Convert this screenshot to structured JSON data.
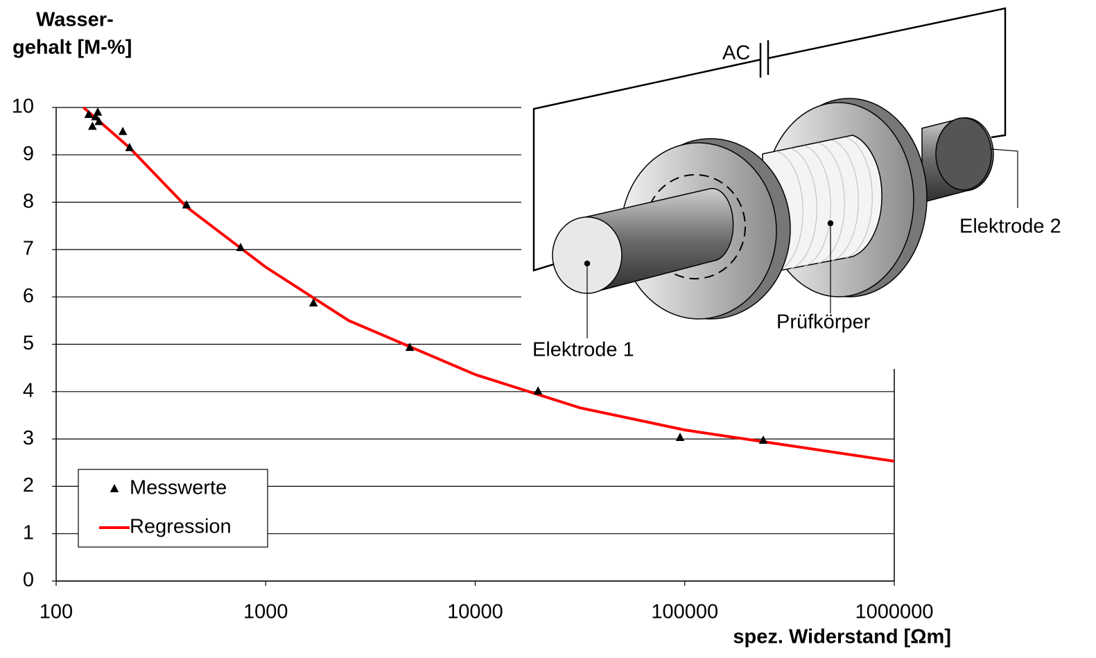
{
  "chart_data": {
    "type": "scatter",
    "ylabel_lines": [
      "Wasser-",
      "gehalt [M-%]"
    ],
    "xlabel": "spez. Widerstand [Ωm]",
    "xscale": "log",
    "xlim": [
      100,
      1000000
    ],
    "xticks": [
      100,
      1000,
      10000,
      100000,
      1000000
    ],
    "ylim": [
      0,
      10
    ],
    "yticks": [
      0,
      1,
      2,
      3,
      4,
      5,
      6,
      7,
      8,
      9,
      10
    ],
    "grid": true,
    "legend": "lower left",
    "series": [
      {
        "name": "Messwerte",
        "type": "scatter",
        "color": "#000000",
        "x": [
          143,
          149,
          154,
          158,
          160,
          208,
          224,
          419,
          759,
          1690,
          4870,
          19950,
          95000,
          237000
        ],
        "values": [
          9.85,
          9.6,
          9.8,
          9.9,
          9.7,
          9.49,
          9.15,
          7.94,
          7.04,
          5.87,
          4.93,
          4.01,
          3.03,
          2.97
        ]
      },
      {
        "name": "Regression",
        "type": "line",
        "color": "#ff0000",
        "x": [
          135,
          224,
          419,
          1000,
          2490,
          10000,
          31500,
          100000,
          1000000
        ],
        "values": [
          10,
          9.15,
          7.9,
          6.63,
          5.5,
          4.36,
          3.66,
          3.19,
          2.53
        ]
      }
    ]
  },
  "diagram": {
    "source_label": "AC",
    "electrode_1": "Elektrode 1",
    "electrode_2": "Elektrode 2",
    "specimen": "Prüfkörper"
  }
}
